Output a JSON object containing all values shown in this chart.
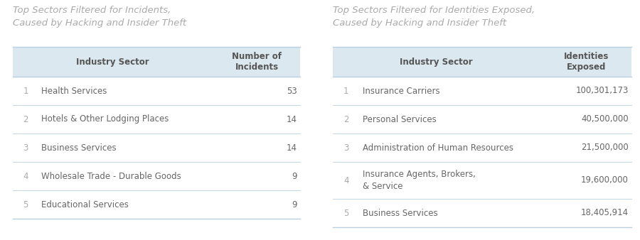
{
  "left_title": "Top Sectors Filtered for Incidents,\nCaused by Hacking and Insider Theft",
  "right_title": "Top Sectors Filtered for Identities Exposed,\nCaused by Hacking and Insider Theft",
  "left_col_headers": [
    "Industry Sector",
    "Number of\nIncidents"
  ],
  "right_col_headers": [
    "Industry Sector",
    "Identities\nExposed"
  ],
  "left_rows": [
    [
      "1",
      "Health Services",
      "53"
    ],
    [
      "2",
      "Hotels & Other Lodging Places",
      "14"
    ],
    [
      "3",
      "Business Services",
      "14"
    ],
    [
      "4",
      "Wholesale Trade - Durable Goods",
      "9"
    ],
    [
      "5",
      "Educational Services",
      "9"
    ]
  ],
  "right_rows": [
    [
      "1",
      "Insurance Carriers",
      "100,301,173"
    ],
    [
      "2",
      "Personal Services",
      "40,500,000"
    ],
    [
      "3",
      "Administration of Human Resources",
      "21,500,000"
    ],
    [
      "4",
      "Insurance Agents, Brokers,\n& Service",
      "19,600,000"
    ],
    [
      "5",
      "Business Services",
      "18,405,914"
    ]
  ],
  "header_bg": "#dce8f0",
  "divider_color": "#b8d0e0",
  "title_color": "#aaaaaa",
  "header_text_color": "#555555",
  "row_text_color": "#666666",
  "number_text_color": "#aaaaaa",
  "bg_color": "#ffffff",
  "title_fontsize": 9.5,
  "header_fontsize": 8.5,
  "row_fontsize": 8.5
}
